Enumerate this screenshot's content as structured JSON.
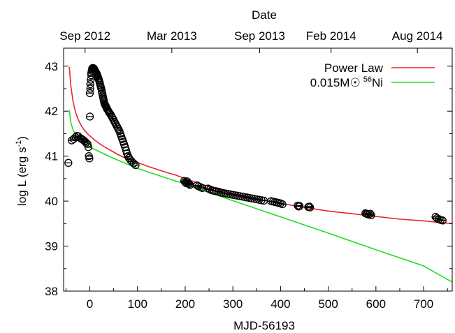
{
  "chart_data": {
    "type": "scatter",
    "title": "",
    "xlabel": "MJD-56193",
    "ylabel_parts": {
      "main": "log L (erg s",
      "sup": "-1",
      "close": ")"
    },
    "top_axis": {
      "title": "Date",
      "ticks": [
        {
          "label": "Sep 2012",
          "x": -10
        },
        {
          "label": "Mar 2013",
          "x": 172
        },
        {
          "label": "Sep 2013",
          "x": 356
        },
        {
          "label": "Feb 2014",
          "x": 506
        },
        {
          "label": "Aug 2014",
          "x": 687
        }
      ]
    },
    "xlim": [
      -55,
      760
    ],
    "ylim": [
      38,
      43.4
    ],
    "xticks": [
      0,
      100,
      200,
      300,
      400,
      500,
      600,
      700
    ],
    "yticks": [
      38,
      39,
      40,
      41,
      42,
      43
    ],
    "grid": false,
    "legend_position": "top-right",
    "series": [
      {
        "name": "Power Law",
        "kind": "line",
        "color": "#e8262b",
        "x": [
          -43,
          -40,
          -35,
          -30,
          -25,
          -20,
          -15,
          -10,
          -5,
          0,
          10,
          20,
          30,
          40,
          50,
          60,
          70,
          80,
          90,
          100,
          120,
          140,
          160,
          180,
          200,
          250,
          300,
          350,
          400,
          450,
          500,
          550,
          600,
          650,
          700,
          760
        ],
        "y": [
          42.98,
          42.58,
          42.2,
          41.98,
          41.83,
          41.72,
          41.63,
          41.56,
          41.5,
          41.45,
          41.36,
          41.28,
          41.21,
          41.15,
          41.09,
          41.03,
          40.98,
          40.94,
          40.9,
          40.86,
          40.78,
          40.71,
          40.64,
          40.58,
          40.5,
          40.32,
          40.17,
          40.05,
          39.95,
          39.86,
          39.78,
          39.72,
          39.66,
          39.6,
          39.56,
          39.5
        ]
      },
      {
        "name": "0.015M☉ ⁵⁶Ni",
        "legend_parts": {
          "pre": "0.015M",
          "sym": "☉",
          "sup": "56",
          "post": "Ni"
        },
        "kind": "line",
        "color": "#1ee01e",
        "x": [
          -43,
          -40,
          -35,
          -30,
          -25,
          -20,
          -10,
          0,
          50,
          100,
          150,
          200,
          300,
          400,
          500,
          600,
          700,
          760
        ],
        "y": [
          42.02,
          41.75,
          41.58,
          41.48,
          41.42,
          41.37,
          41.28,
          41.2,
          40.95,
          40.73,
          40.55,
          40.38,
          40.01,
          39.65,
          39.29,
          38.92,
          38.56,
          38.2
        ]
      },
      {
        "name": "data",
        "kind": "points",
        "color": "#000000",
        "x": [
          -45,
          -38,
          -34,
          -30,
          -27,
          -24,
          -20,
          -17,
          -14,
          -11,
          -8,
          -5,
          -3,
          -2,
          -1,
          0,
          0,
          1,
          1,
          2,
          3,
          3,
          4,
          5,
          5,
          6,
          7,
          8,
          9,
          10,
          11,
          12,
          13,
          14,
          15,
          16,
          17,
          18,
          19,
          20,
          21,
          22,
          23,
          24,
          25,
          26,
          27,
          28,
          29,
          30,
          31,
          32,
          33,
          34,
          35,
          36,
          38,
          40,
          42,
          44,
          46,
          48,
          50,
          52,
          54,
          56,
          58,
          60,
          62,
          64,
          66,
          68,
          70,
          72,
          74,
          76,
          78,
          80,
          82,
          85,
          88,
          92,
          96,
          198,
          200,
          202,
          204,
          206,
          208,
          210,
          225,
          228,
          232,
          236,
          248,
          252,
          256,
          260,
          265,
          270,
          275,
          280,
          285,
          290,
          295,
          300,
          305,
          310,
          315,
          320,
          325,
          330,
          335,
          340,
          345,
          350,
          355,
          360,
          365,
          380,
          384,
          388,
          392,
          396,
          400,
          404,
          436,
          438,
          440,
          458,
          460,
          462,
          578,
          580,
          582,
          585,
          588,
          590,
          725,
          728,
          732,
          736,
          740
        ],
        "y": [
          40.85,
          41.35,
          41.38,
          41.42,
          41.45,
          41.44,
          41.4,
          41.38,
          41.36,
          41.33,
          41.3,
          41.27,
          41.2,
          41.0,
          40.95,
          41.88,
          42.4,
          42.5,
          42.6,
          42.7,
          42.8,
          42.85,
          42.9,
          42.93,
          42.95,
          42.96,
          42.96,
          42.95,
          42.94,
          42.92,
          42.9,
          42.88,
          42.86,
          42.84,
          42.82,
          42.79,
          42.76,
          42.73,
          42.7,
          42.66,
          42.62,
          42.58,
          42.54,
          42.5,
          42.45,
          42.4,
          42.35,
          42.3,
          42.25,
          42.2,
          42.16,
          42.14,
          42.12,
          42.1,
          42.08,
          42.05,
          42.02,
          41.98,
          41.95,
          41.92,
          41.88,
          41.84,
          41.8,
          41.76,
          41.72,
          41.68,
          41.64,
          41.6,
          41.56,
          41.5,
          41.44,
          41.38,
          41.32,
          41.26,
          41.2,
          41.13,
          41.06,
          41.0,
          40.96,
          40.92,
          40.88,
          40.84,
          40.8,
          40.45,
          40.42,
          40.4,
          40.44,
          40.4,
          40.38,
          40.36,
          40.35,
          40.33,
          40.31,
          40.29,
          40.28,
          40.26,
          40.24,
          40.23,
          40.22,
          40.21,
          40.19,
          40.18,
          40.17,
          40.16,
          40.15,
          40.14,
          40.13,
          40.12,
          40.11,
          40.1,
          40.09,
          40.08,
          40.07,
          40.06,
          40.05,
          40.04,
          40.03,
          40.02,
          40.01,
          40.0,
          39.99,
          39.98,
          39.97,
          39.96,
          39.95,
          39.93,
          39.9,
          39.88,
          39.89,
          39.87,
          39.88,
          39.86,
          39.73,
          39.72,
          39.71,
          39.7,
          39.72,
          39.69,
          39.65,
          39.62,
          39.6,
          39.58,
          39.57
        ]
      }
    ]
  }
}
